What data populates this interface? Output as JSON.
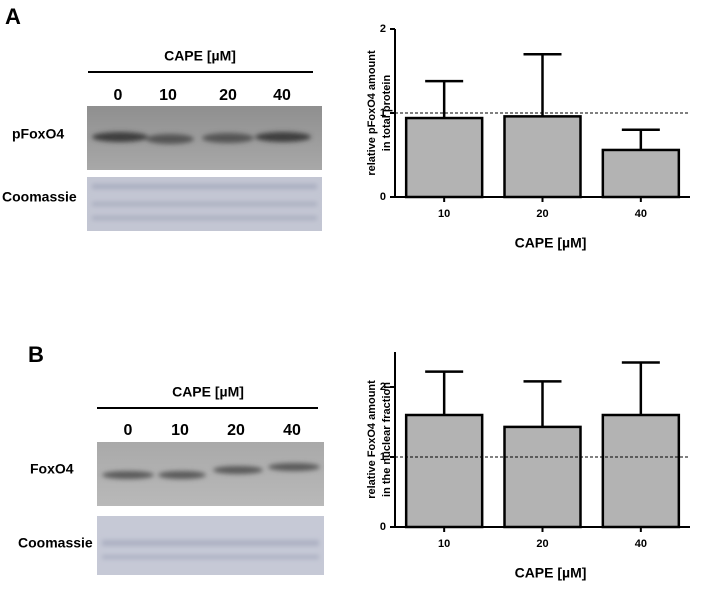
{
  "panels": [
    {
      "label": "A",
      "header": "CAPE [µM]",
      "lanes": [
        "0",
        "10",
        "20",
        "40"
      ],
      "rows": [
        "pFoxO4",
        "Coomassie"
      ]
    },
    {
      "label": "B",
      "header": "CAPE [µM]",
      "lanes": [
        "0",
        "10",
        "20",
        "40"
      ],
      "rows": [
        "FoxO4",
        "Coomassie"
      ]
    }
  ],
  "chart_data": [
    {
      "type": "bar",
      "ylabel": [
        "relative pFoxO4 amount",
        "in total protein"
      ],
      "xlabel": "CAPE [µM]",
      "categories": [
        "10",
        "20",
        "40"
      ],
      "values": [
        0.94,
        0.96,
        0.56
      ],
      "errors": [
        0.44,
        0.74,
        0.24
      ],
      "ylim": [
        0,
        2
      ],
      "yticks": [
        0,
        1,
        2
      ],
      "reference_line": 1,
      "color": "#b3b3b3"
    },
    {
      "type": "bar",
      "ylabel": [
        "relative FoxO4 amount",
        "in the nuclear fraction"
      ],
      "xlabel": "CAPE [µM]",
      "categories": [
        "10",
        "20",
        "40"
      ],
      "values": [
        1.6,
        1.43,
        1.6
      ],
      "errors": [
        0.62,
        0.65,
        0.75
      ],
      "ylim": [
        0,
        2.5
      ],
      "yticks": [
        0,
        1,
        2
      ],
      "reference_line": 1,
      "color": "#b3b3b3"
    }
  ]
}
